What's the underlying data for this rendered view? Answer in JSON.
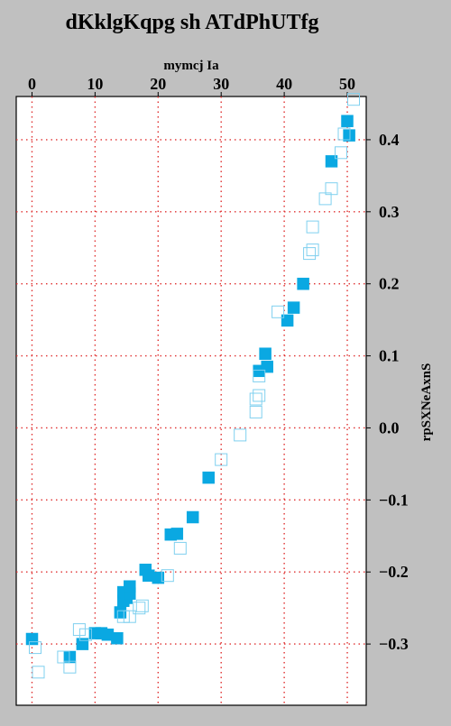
{
  "chart_data": {
    "type": "scatter",
    "title": "dKklgKqpg sh ATdPhUTfg",
    "xlabel": "mymcj Ia",
    "ylabel": "rpSXNeAxnS",
    "xlim": [
      -2.5,
      53
    ],
    "ylim": [
      -0.385,
      0.46
    ],
    "x_ticks": [
      0,
      10,
      20,
      30,
      40,
      50
    ],
    "y_ticks": [
      -0.3,
      -0.2,
      -0.1,
      0.0,
      0.1,
      0.2,
      0.3,
      0.4
    ],
    "y_tick_labels": [
      "−0.3",
      "−0.2",
      "−0.1",
      "0.0",
      "0.1",
      "0.2",
      "0.3",
      "0.4"
    ],
    "x_axis_position": "top",
    "y_axis_position": "right",
    "grid": true,
    "grid_style": "dotted",
    "grid_color": "#e03030",
    "plot_background": "#ffffff",
    "page_background": "#c0c0c0",
    "series": [
      {
        "marker": "filled-square",
        "color": "#0aa8e2",
        "points": [
          [
            0,
            -0.293
          ],
          [
            6,
            -0.318
          ],
          [
            8,
            -0.3
          ],
          [
            10,
            -0.285
          ],
          [
            11,
            -0.285
          ],
          [
            12,
            -0.287
          ],
          [
            13.5,
            -0.292
          ],
          [
            14,
            -0.256
          ],
          [
            14.5,
            -0.24
          ],
          [
            14.5,
            -0.228
          ],
          [
            15,
            -0.236
          ],
          [
            15.5,
            -0.23
          ],
          [
            15.5,
            -0.22
          ],
          [
            18,
            -0.197
          ],
          [
            18.5,
            -0.205
          ],
          [
            20,
            -0.208
          ],
          [
            22,
            -0.148
          ],
          [
            23,
            -0.147
          ],
          [
            25.5,
            -0.124
          ],
          [
            28,
            -0.069
          ],
          [
            36,
            0.079
          ],
          [
            37,
            0.103
          ],
          [
            37.3,
            0.085
          ],
          [
            40.5,
            0.149
          ],
          [
            41.5,
            0.167
          ],
          [
            43,
            0.2
          ],
          [
            47.5,
            0.37
          ],
          [
            50,
            0.426
          ],
          [
            50.3,
            0.406
          ]
        ]
      },
      {
        "marker": "open-square",
        "color": "#7fd0ef",
        "points": [
          [
            0.5,
            -0.305
          ],
          [
            1,
            -0.339
          ],
          [
            5,
            -0.318
          ],
          [
            6,
            -0.332
          ],
          [
            7.5,
            -0.28
          ],
          [
            8.5,
            -0.287
          ],
          [
            14.5,
            -0.262
          ],
          [
            15.5,
            -0.262
          ],
          [
            17,
            -0.25
          ],
          [
            17.5,
            -0.247
          ],
          [
            21.5,
            -0.205
          ],
          [
            23.5,
            -0.167
          ],
          [
            30,
            -0.044
          ],
          [
            33,
            -0.01
          ],
          [
            35.5,
            0.022
          ],
          [
            35.5,
            0.04
          ],
          [
            36,
            0.045
          ],
          [
            36,
            0.072
          ],
          [
            39,
            0.161
          ],
          [
            44,
            0.242
          ],
          [
            44.5,
            0.247
          ],
          [
            44.5,
            0.279
          ],
          [
            46.5,
            0.318
          ],
          [
            47.5,
            0.332
          ],
          [
            49,
            0.382
          ],
          [
            49.5,
            0.408
          ],
          [
            51,
            0.456
          ]
        ]
      }
    ]
  }
}
